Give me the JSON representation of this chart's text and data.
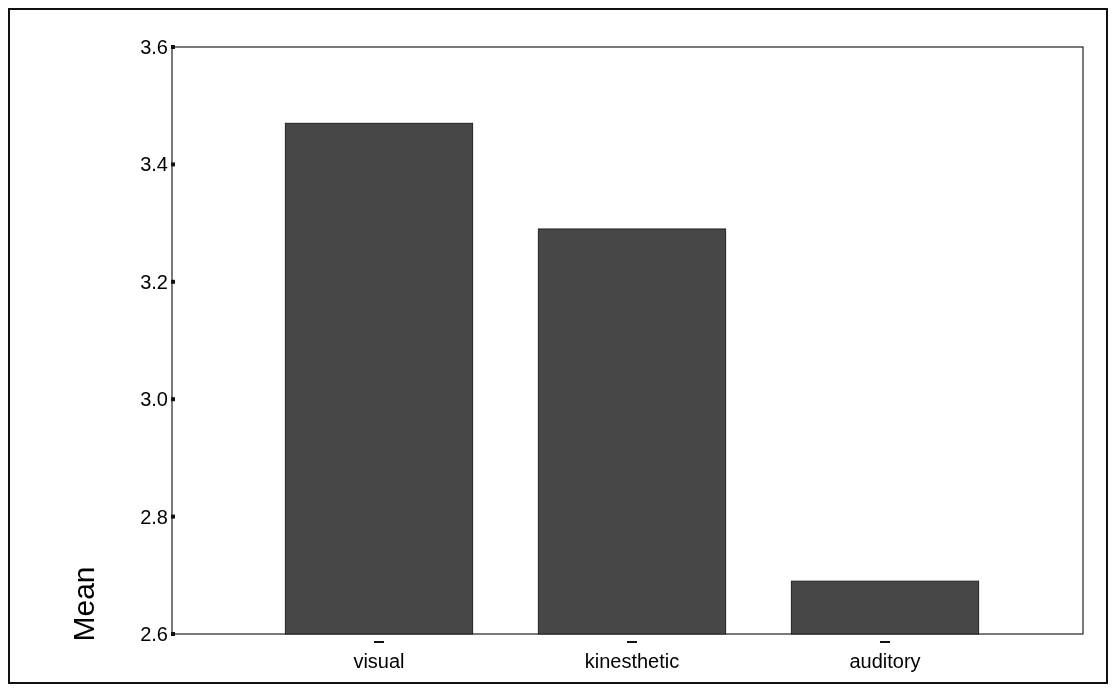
{
  "chart_data": {
    "type": "bar",
    "ylabel": "Mean",
    "categories": [
      "visual",
      "kinesthetic",
      "auditory"
    ],
    "values": [
      3.47,
      3.29,
      2.69
    ],
    "color": "#474747",
    "ylim": [
      2.6,
      3.6
    ],
    "yticks": [
      2.6,
      2.8,
      {
        "value": 3,
        "label": "3.0"
      },
      3.2,
      3.4,
      3.6
    ],
    "grid": false
  }
}
